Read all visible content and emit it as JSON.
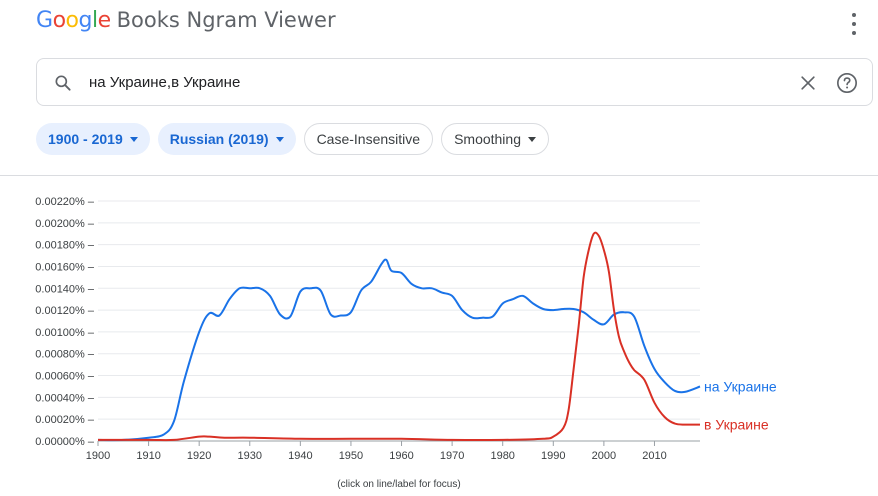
{
  "header": {
    "logo_letters": [
      {
        "char": "G",
        "color": "#4285f4"
      },
      {
        "char": "o",
        "color": "#ea4335"
      },
      {
        "char": "o",
        "color": "#fbbc05"
      },
      {
        "char": "g",
        "color": "#4285f4"
      },
      {
        "char": "l",
        "color": "#34a853"
      },
      {
        "char": "e",
        "color": "#ea4335"
      }
    ],
    "product": "Books Ngram Viewer",
    "menu_icon": "more-vert-icon"
  },
  "search": {
    "value": "на Украине,в Украине",
    "icons": [
      "search-icon",
      "clear-icon",
      "help-icon"
    ]
  },
  "filters": [
    {
      "label": "1900 - 2019",
      "active": true,
      "dropdown": true
    },
    {
      "label": "Russian (2019)",
      "active": true,
      "dropdown": true
    },
    {
      "label": "Case-Insensitive",
      "active": false,
      "dropdown": false
    },
    {
      "label": "Smoothing",
      "active": false,
      "dropdown": true
    }
  ],
  "chart_data": {
    "type": "line",
    "x_range": [
      1900,
      2019
    ],
    "ylim": [
      0,
      0.0022
    ],
    "y_ticks": [
      "0.00000%",
      "0.00020%",
      "0.00040%",
      "0.00060%",
      "0.00080%",
      "0.00100%",
      "0.00120%",
      "0.00140%",
      "0.00160%",
      "0.00180%",
      "0.00200%",
      "0.00220%"
    ],
    "x_ticks": [
      "1900",
      "1910",
      "1920",
      "1930",
      "1940",
      "1950",
      "1960",
      "1970",
      "1980",
      "1990",
      "2000",
      "2010"
    ],
    "grid": "horizontal",
    "footnote": "(click on line/label for focus)",
    "series": [
      {
        "name": "на Украине",
        "color": "#1a73e8",
        "x": [
          1900,
          1905,
          1910,
          1913,
          1915,
          1917,
          1920,
          1922,
          1924,
          1926,
          1928,
          1930,
          1932,
          1934,
          1936,
          1938,
          1940,
          1942,
          1944,
          1946,
          1948,
          1950,
          1952,
          1954,
          1956,
          1957,
          1958,
          1960,
          1962,
          1964,
          1966,
          1968,
          1970,
          1972,
          1974,
          1976,
          1978,
          1980,
          1982,
          1984,
          1986,
          1988,
          1990,
          1992,
          1994,
          1996,
          1998,
          2000,
          2002,
          2004,
          2006,
          2008,
          2010,
          2012,
          2014,
          2016,
          2019
        ],
        "y": [
          1e-05,
          1e-05,
          3e-05,
          6e-05,
          0.00018,
          0.00055,
          0.001,
          0.00117,
          0.00115,
          0.0013,
          0.0014,
          0.0014,
          0.0014,
          0.00133,
          0.00116,
          0.00114,
          0.00137,
          0.0014,
          0.00138,
          0.00116,
          0.00115,
          0.00118,
          0.00138,
          0.00146,
          0.00162,
          0.00166,
          0.00156,
          0.00154,
          0.00144,
          0.0014,
          0.0014,
          0.00136,
          0.00133,
          0.0012,
          0.00113,
          0.00113,
          0.00114,
          0.00126,
          0.0013,
          0.00133,
          0.00126,
          0.00121,
          0.0012,
          0.00121,
          0.00121,
          0.00118,
          0.00111,
          0.00107,
          0.00116,
          0.00118,
          0.00114,
          0.00087,
          0.00066,
          0.00054,
          0.00046,
          0.00045,
          0.0005
        ]
      },
      {
        "name": "в Украине",
        "color": "#d93025",
        "x": [
          1900,
          1910,
          1915,
          1920,
          1922,
          1925,
          1930,
          1940,
          1950,
          1960,
          1970,
          1980,
          1988,
          1990,
          1992,
          1993,
          1994,
          1995,
          1996,
          1997,
          1998,
          1999,
          2000,
          2001,
          2002,
          2003,
          2004,
          2005,
          2006,
          2008,
          2010,
          2012,
          2014,
          2016,
          2019
        ],
        "y": [
          1e-05,
          1e-05,
          1e-05,
          4e-05,
          4e-05,
          3e-05,
          3e-05,
          2e-05,
          2e-05,
          2e-05,
          1e-05,
          1e-05,
          2e-05,
          4e-05,
          0.00012,
          0.00028,
          0.00065,
          0.00105,
          0.0015,
          0.00175,
          0.0019,
          0.00188,
          0.00175,
          0.00155,
          0.0012,
          0.00095,
          0.00082,
          0.00072,
          0.00065,
          0.00056,
          0.00035,
          0.00022,
          0.00016,
          0.00015,
          0.00015
        ]
      }
    ]
  }
}
